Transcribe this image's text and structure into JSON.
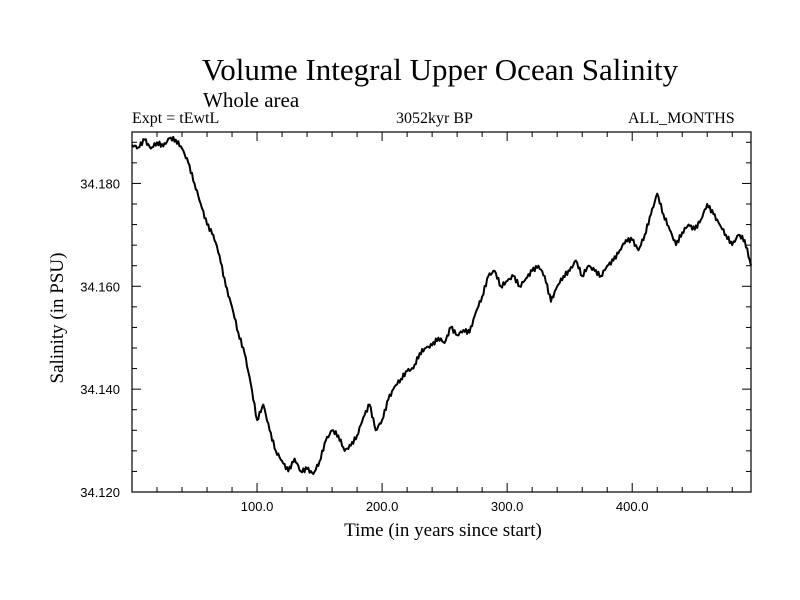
{
  "chart_data": {
    "type": "line",
    "title": "Volume Integral Upper Ocean Salinity",
    "subtitle": "Whole area",
    "left_label": "Expt = tEwtL",
    "center_label": "3052kyr BP",
    "right_label": "ALL_MONTHS",
    "xlabel": "Time (in years since start)",
    "ylabel": "Salinity (in PSU)",
    "xlim": [
      0,
      495
    ],
    "ylim": [
      34.12,
      34.19
    ],
    "x_ticks": [
      100,
      200,
      300,
      400
    ],
    "x_tick_labels": [
      "100.0",
      "200.0",
      "300.0",
      "400.0"
    ],
    "y_ticks": [
      34.12,
      34.14,
      34.16,
      34.18
    ],
    "y_tick_labels": [
      "34.120",
      "34.140",
      "34.160",
      "34.180"
    ],
    "grid": false,
    "series": [
      {
        "name": "Salinity",
        "color": "#000000",
        "x": [
          0,
          5,
          10,
          15,
          20,
          25,
          30,
          35,
          40,
          45,
          50,
          55,
          60,
          65,
          70,
          75,
          80,
          85,
          90,
          95,
          100,
          105,
          110,
          115,
          120,
          125,
          130,
          135,
          140,
          145,
          150,
          155,
          160,
          165,
          170,
          175,
          180,
          185,
          190,
          195,
          200,
          205,
          210,
          215,
          220,
          225,
          230,
          235,
          240,
          245,
          250,
          255,
          260,
          265,
          270,
          275,
          280,
          285,
          290,
          295,
          300,
          305,
          310,
          315,
          320,
          325,
          330,
          335,
          340,
          345,
          350,
          355,
          360,
          365,
          370,
          375,
          380,
          385,
          390,
          395,
          400,
          405,
          410,
          415,
          420,
          425,
          430,
          435,
          440,
          445,
          450,
          455,
          460,
          465,
          470,
          475,
          480,
          485,
          490,
          495
        ],
        "y": [
          34.1875,
          34.187,
          34.1885,
          34.1868,
          34.188,
          34.1872,
          34.1888,
          34.1885,
          34.1868,
          34.184,
          34.18,
          34.176,
          34.172,
          34.17,
          34.166,
          34.16,
          34.156,
          34.151,
          34.147,
          34.141,
          34.134,
          34.137,
          34.132,
          34.128,
          34.126,
          34.124,
          34.1265,
          34.124,
          34.1245,
          34.1235,
          34.126,
          34.13,
          34.132,
          34.131,
          34.128,
          34.129,
          34.131,
          34.1345,
          34.137,
          34.132,
          34.134,
          34.138,
          34.1405,
          34.142,
          34.1435,
          34.144,
          34.147,
          34.148,
          34.1485,
          34.15,
          34.149,
          34.152,
          34.1505,
          34.1515,
          34.151,
          34.155,
          34.158,
          34.162,
          34.163,
          34.16,
          34.161,
          34.162,
          34.16,
          34.1615,
          34.163,
          34.164,
          34.162,
          34.157,
          34.16,
          34.162,
          34.163,
          34.165,
          34.162,
          34.164,
          34.163,
          34.162,
          34.164,
          34.165,
          34.167,
          34.169,
          34.169,
          34.167,
          34.17,
          34.174,
          34.178,
          34.174,
          34.171,
          34.168,
          34.1705,
          34.172,
          34.171,
          34.173,
          34.176,
          34.174,
          34.172,
          34.17,
          34.168,
          34.17,
          34.169,
          34.164
        ]
      }
    ]
  }
}
